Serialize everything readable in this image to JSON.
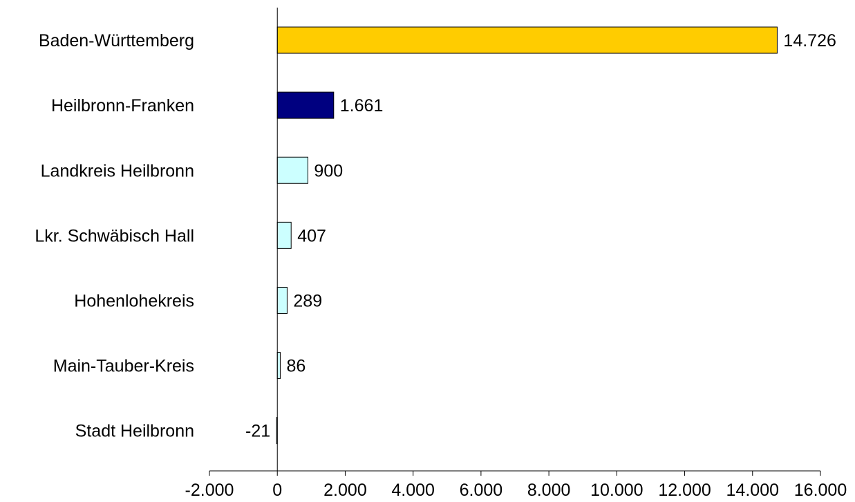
{
  "chart_data": {
    "type": "bar",
    "orientation": "horizontal",
    "categories": [
      "Baden-Württemberg",
      "Heilbronn-Franken",
      "Landkreis Heilbronn",
      "Lkr. Schwäbisch Hall",
      "Hohenlohekreis",
      "Main-Tauber-Kreis",
      "Stadt Heilbronn"
    ],
    "values": [
      14726,
      1661,
      900,
      407,
      289,
      86,
      -21
    ],
    "value_labels": [
      "14.726",
      "1.661",
      "900",
      "407",
      "289",
      "86",
      "-21"
    ],
    "bar_colors": [
      "#FFCC00",
      "#000080",
      "#CCFFFF",
      "#CCFFFF",
      "#CCFFFF",
      "#CCFFFF",
      "#CCFFFF"
    ],
    "xlim": [
      -2000,
      16000
    ],
    "xticks": [
      -2000,
      0,
      2000,
      4000,
      6000,
      8000,
      10000,
      12000,
      14000,
      16000
    ],
    "xtick_labels": [
      "-2.000",
      "0",
      "2.000",
      "4.000",
      "6.000",
      "8.000",
      "10.000",
      "12.000",
      "14.000",
      "16.000"
    ],
    "grid": false,
    "legend": "none",
    "title": "",
    "xlabel": "",
    "ylabel": ""
  }
}
